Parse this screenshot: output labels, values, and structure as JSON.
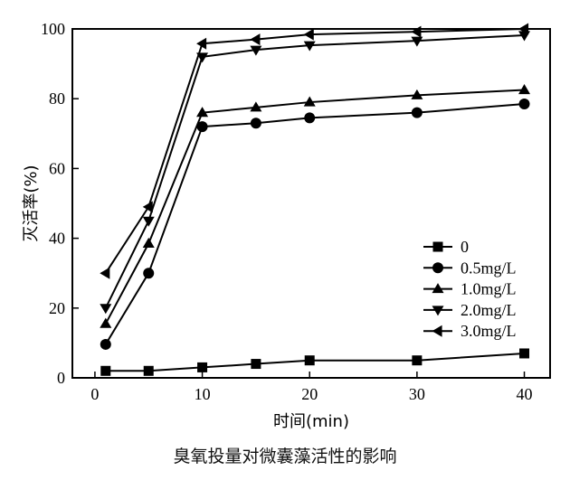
{
  "chart_data": {
    "type": "line",
    "title": "",
    "caption": "臭氧投量对微囊藻活性的影响",
    "xlabel": "时间(min)",
    "ylabel": "灭活率(%)",
    "xlim": [
      -2.1,
      42.4
    ],
    "ylim": [
      0,
      100
    ],
    "xticks": [
      0,
      10,
      20,
      30,
      40
    ],
    "yticks": [
      0,
      20,
      40,
      60,
      80,
      100
    ],
    "grid": false,
    "legend_position": "right-middle",
    "x": [
      1,
      5,
      10,
      15,
      20,
      30,
      40
    ],
    "series": [
      {
        "name": "0",
        "marker": "square",
        "values": [
          2,
          2,
          3,
          4,
          5,
          5,
          7
        ]
      },
      {
        "name": "0.5mg/L",
        "marker": "circle",
        "values": [
          9.6,
          30,
          72,
          73,
          74.5,
          76,
          78.5
        ]
      },
      {
        "name": "1.0mg/L",
        "marker": "triangle-up",
        "values": [
          15.5,
          38.5,
          76,
          77.5,
          79,
          81,
          82.5
        ]
      },
      {
        "name": "2.0mg/L",
        "marker": "triangle-down",
        "values": [
          20,
          45,
          92,
          94,
          95.3,
          96.6,
          98.2
        ]
      },
      {
        "name": "3.0mg/L",
        "marker": "triangle-left",
        "values": [
          30,
          49,
          95.8,
          97,
          98.4,
          99.2,
          100
        ]
      }
    ]
  }
}
